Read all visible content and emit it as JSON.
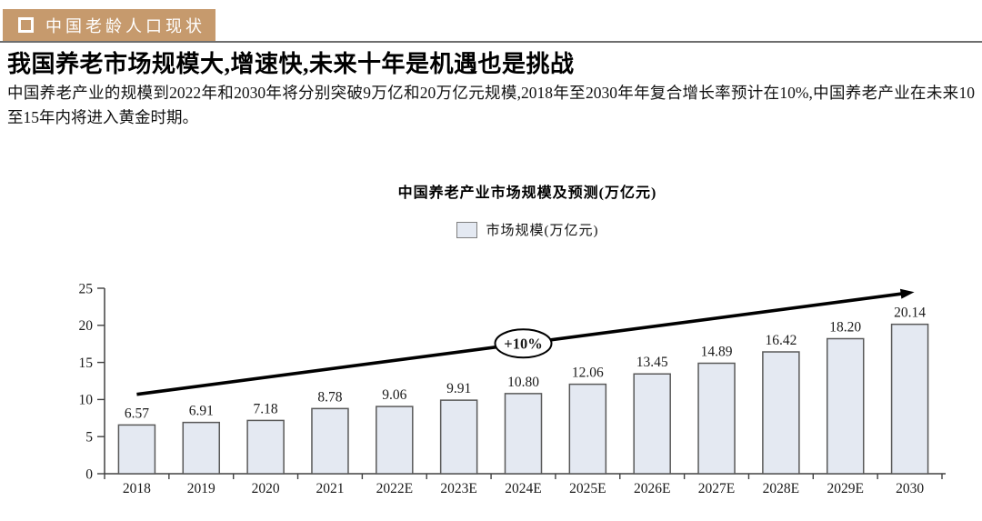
{
  "header": {
    "section_label": "中国老龄人口现状",
    "title": "我国养老市场规模大,增速快,未来十年是机遇也是挑战",
    "body": "中国养老产业的规模到2022年和2030年将分别突破9万亿和20万亿元规模,2018年至2030年年复合增长率预计在10%,中国养老产业在未来10至15年内将进入黄金时期。"
  },
  "colors": {
    "banner_bg": "#C69A6D",
    "banner_text": "#FFFFFF",
    "bar_fill": "#E4E9F2",
    "bar_border": "#595959",
    "axis": "#404040",
    "trend_line": "#000000",
    "annotation_bg": "#FFFFFF"
  },
  "chart_data": {
    "type": "bar",
    "title": "中国养老产业市场规模及预测(万亿元)",
    "legend": "市场规模(万亿元)",
    "legend_position": "top",
    "grid": false,
    "categories": [
      "2018",
      "2019",
      "2020",
      "2021",
      "2022E",
      "2023E",
      "2024E",
      "2025E",
      "2026E",
      "2027E",
      "2028E",
      "2029E",
      "2030"
    ],
    "values": [
      6.57,
      6.91,
      7.18,
      8.78,
      9.06,
      9.91,
      10.8,
      12.06,
      13.45,
      14.89,
      16.42,
      18.2,
      20.14
    ],
    "value_decimals": 2,
    "xlabel": "",
    "ylabel": "",
    "ylim": [
      0,
      25
    ],
    "yticks": [
      0,
      5,
      10,
      15,
      20,
      25
    ],
    "annotation": {
      "label": "+10%",
      "trend_start_value": 10.7,
      "trend_end_value": 24.4,
      "label_fraction": 0.5
    }
  }
}
